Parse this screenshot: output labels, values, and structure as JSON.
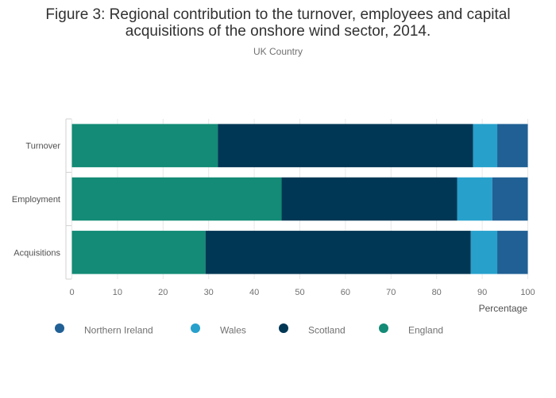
{
  "chart_data": {
    "type": "bar",
    "orientation": "horizontal",
    "stacked": true,
    "title_line1": "Figure 3: Regional contribution to the turnover, employees and capital",
    "title_line2": "acquisitions of the onshore wind sector, 2014.",
    "subtitle": "UK Country",
    "xlabel": "Percentage",
    "ylabel": "",
    "xlim": [
      0,
      100
    ],
    "xticks": [
      0,
      10,
      20,
      30,
      40,
      50,
      60,
      70,
      80,
      90,
      100
    ],
    "categories": [
      "Turnover",
      "Employment",
      "Acquisitions"
    ],
    "series": [
      {
        "name": "England",
        "color": "#138b76",
        "values": [
          32,
          46,
          29.3
        ]
      },
      {
        "name": "Scotland",
        "color": "#003755",
        "values": [
          56,
          38.5,
          58.2
        ]
      },
      {
        "name": "Wales",
        "color": "#27a0cc",
        "values": [
          5.3,
          7.7,
          5.8
        ]
      },
      {
        "name": "Northern Ireland",
        "color": "#206095",
        "values": [
          6.7,
          7.8,
          6.7
        ]
      }
    ],
    "legend_order": [
      "Northern Ireland",
      "Wales",
      "Scotland",
      "England"
    ],
    "legend_position": "bottom",
    "grid": true
  }
}
